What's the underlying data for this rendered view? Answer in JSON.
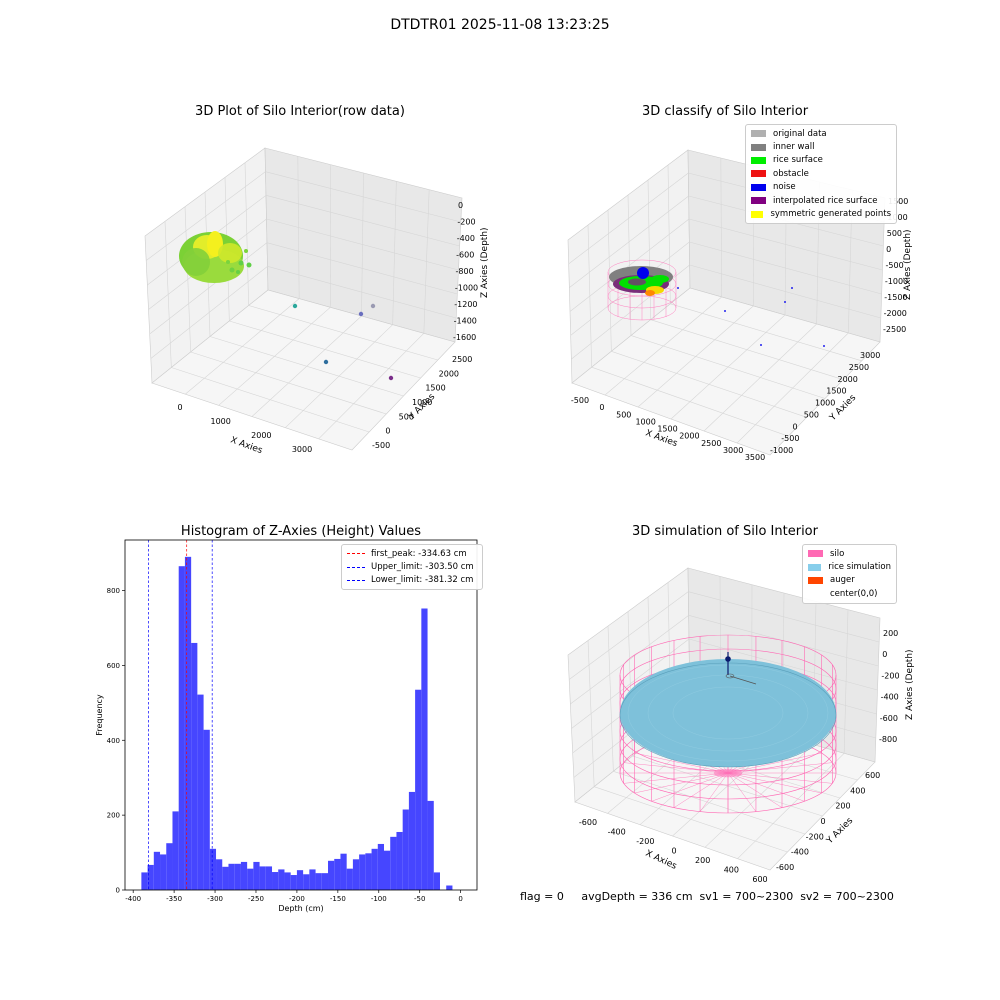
{
  "figure": {
    "title": "DTDTR01 2025-11-08 13:23:25",
    "status_text": "flag = 0     avgDepth = 336 cm  sv1 = 700~2300  sv2 = 700~2300"
  },
  "panels": {
    "raw": {
      "title": "3D Plot of Silo Interior(row data)",
      "xlabel": "X Axies",
      "ylabel": "Y Axies",
      "zlabel": "Z Axies (Depth)",
      "xticks": [
        "0",
        "1000",
        "2000",
        "3000"
      ],
      "yticks": [
        "-500",
        "0",
        "500",
        "1000",
        "1500",
        "2000",
        "2500"
      ],
      "zticks": [
        "0",
        "-200",
        "-400",
        "-600",
        "-800",
        "-1000",
        "-1200",
        "-1400",
        "-1600"
      ]
    },
    "classify": {
      "title": "3D classify of Silo Interior",
      "xlabel": "X Axies",
      "ylabel": "Y Axies",
      "zlabel": "Z Axies (Depth)",
      "xticks": [
        "-500",
        "0",
        "500",
        "1000",
        "1500",
        "2000",
        "2500",
        "3000",
        "3500"
      ],
      "yticks": [
        "-1000",
        "-500",
        "0",
        "500",
        "1000",
        "1500",
        "2000",
        "2500",
        "3000"
      ],
      "zticks": [
        "1500",
        "1000",
        "500",
        "0",
        "-500",
        "-1000",
        "-1500",
        "-2000",
        "-2500"
      ],
      "legend": [
        {
          "label": "original data",
          "color": "#b0b0b0"
        },
        {
          "label": "inner wall",
          "color": "#808080"
        },
        {
          "label": "rice surface",
          "color": "#00ee00"
        },
        {
          "label": "obstacle",
          "color": "#ee1111"
        },
        {
          "label": "noise",
          "color": "#0000ee"
        },
        {
          "label": "interpolated rice surface",
          "color": "#800080"
        },
        {
          "label": "symmetric generated points",
          "color": "#ffff00"
        }
      ]
    },
    "simulation": {
      "title": "3D simulation of Silo Interior",
      "xlabel": "X Axies",
      "ylabel": "Y Axies",
      "zlabel": "Z Axies (Depth)",
      "xticks": [
        "-600",
        "-400",
        "-200",
        "0",
        "200",
        "400",
        "600"
      ],
      "yticks": [
        "-600",
        "-400",
        "-200",
        "0",
        "200",
        "400",
        "600"
      ],
      "zticks": [
        "200",
        "0",
        "-200",
        "-400",
        "-600",
        "-800"
      ],
      "legend": [
        {
          "label": "silo",
          "color": "#ff69b4"
        },
        {
          "label": "rice simulation",
          "color": "#87ceeb"
        },
        {
          "label": "auger",
          "color": "#ff4500"
        },
        {
          "label": "center(0,0)",
          "color": "none"
        }
      ]
    }
  },
  "chart_data": [
    {
      "type": "scatter",
      "title": "3D Plot of Silo Interior(row data)",
      "xlabel": "X Axies",
      "ylabel": "Y Axies",
      "zlabel": "Z Axies (Depth)",
      "xlim": [
        -500,
        3500
      ],
      "ylim": [
        -500,
        2500
      ],
      "zlim": [
        -1600,
        0
      ],
      "grid": true
    },
    {
      "type": "scatter",
      "title": "3D classify of Silo Interior",
      "xlabel": "X Axies",
      "ylabel": "Y Axies",
      "zlabel": "Z Axies (Depth)",
      "xlim": [
        -500,
        3500
      ],
      "ylim": [
        -1000,
        3000
      ],
      "zlim": [
        -2500,
        1500
      ],
      "series": [
        {
          "name": "original data"
        },
        {
          "name": "inner wall"
        },
        {
          "name": "rice surface"
        },
        {
          "name": "obstacle"
        },
        {
          "name": "noise"
        },
        {
          "name": "interpolated rice surface"
        },
        {
          "name": "symmetric generated points"
        }
      ],
      "legend": "top-right",
      "grid": true
    },
    {
      "type": "bar",
      "title": "Histogram of Z-Axies (Height) Values",
      "xlabel": "Depth (cm)",
      "ylabel": "Frequency",
      "bin_start": -390,
      "bin_width": 7.6,
      "values": [
        47,
        67,
        102,
        95,
        125,
        210,
        865,
        890,
        660,
        522,
        428,
        110,
        82,
        62,
        70,
        70,
        75,
        57,
        75,
        63,
        63,
        48,
        55,
        47,
        40,
        53,
        42,
        55,
        45,
        45,
        78,
        83,
        97,
        57,
        82,
        95,
        98,
        110,
        123,
        105,
        142,
        155,
        215,
        262,
        535,
        752,
        238,
        47,
        0,
        12
      ],
      "xlim": [
        -410,
        20
      ],
      "ylim": [
        0,
        935
      ],
      "xticks": [
        -400,
        -350,
        -300,
        -250,
        -200,
        -150,
        -100,
        -50,
        0
      ],
      "yticks": [
        0,
        200,
        400,
        600,
        800
      ],
      "vlines": [
        {
          "label": "first_peak: -334.63 cm",
          "x": -334.63,
          "color": "#ff0000"
        },
        {
          "label": "Upper_limit: -303.50 cm",
          "x": -303.5,
          "color": "#0000ff"
        },
        {
          "label": "Lower_limit: -381.32 cm",
          "x": -381.32,
          "color": "#0000ff"
        }
      ],
      "bar_color": "#4646ff",
      "legend": "top-right",
      "grid": false
    },
    {
      "type": "scatter",
      "title": "3D simulation of Silo Interior",
      "xlabel": "X Axies",
      "ylabel": "Y Axies",
      "zlabel": "Z Axies (Depth)",
      "xlim": [
        -700,
        700
      ],
      "ylim": [
        -700,
        700
      ],
      "zlim": [
        -900,
        300
      ],
      "series": [
        {
          "name": "silo"
        },
        {
          "name": "rice simulation"
        },
        {
          "name": "auger"
        },
        {
          "name": "center(0,0)"
        }
      ],
      "legend": "top-right",
      "grid": true
    }
  ]
}
